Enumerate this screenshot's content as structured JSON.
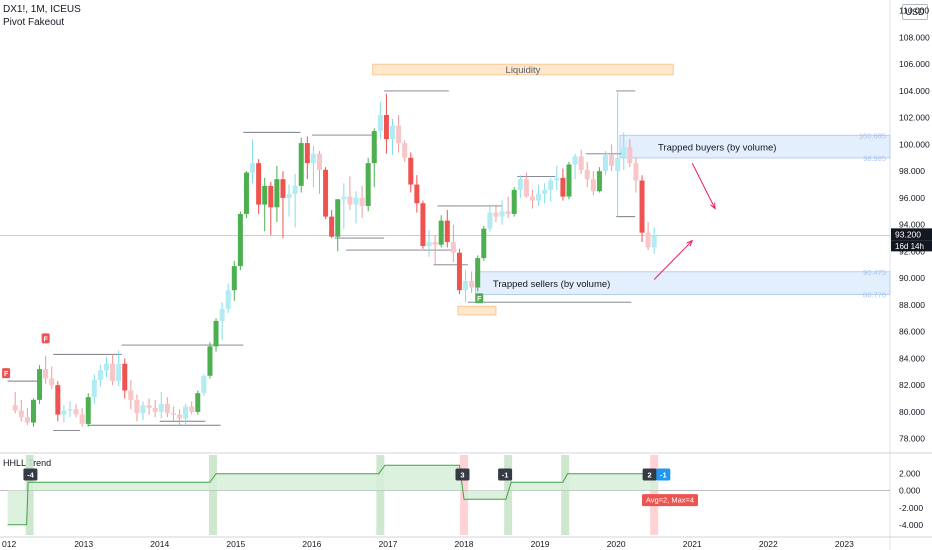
{
  "header": {
    "title": "DX1!, 1M, ICEUS",
    "subtitle": "Pivot Fakeout",
    "currency": "USD"
  },
  "colors": {
    "bull": "#26a69a",
    "bull_strong": "#4caf50",
    "bear": "#ef5350",
    "bull_light": "#b2ebf2",
    "bear_light": "#f8c5c8",
    "zone_fill": "#e3effd",
    "zone_stroke": "#a9c6e8",
    "liquidity_fill": "#ffe7cc",
    "liquidity_stroke": "#f5c08c",
    "trend_fill": "#d6efd8",
    "trend_line": "#43a047",
    "highlight_green": "#c8e6c9",
    "highlight_red": "#ffcdd2",
    "level_line": "#787b86",
    "arrow": "#e91e63"
  },
  "annotations": {
    "liquidity": "Liquidity",
    "trapped_buyers": "Trapped buyers (by volume)",
    "trapped_sellers": "Trapped sellers (by volume)",
    "marker_f": "F",
    "hhll_title": "HHLL Trend",
    "avg_max": "Avg=2, Max=4",
    "current_price": "93.200",
    "countdown": "16d 14h",
    "zone_labels": [
      "100.685",
      "98.985",
      "90.475",
      "88.770"
    ]
  },
  "chart_data": [
    {
      "type": "candlestick",
      "title": "DX1!, 1M, ICEUS",
      "x_label": "",
      "y_label": "",
      "x_ticks": [
        "2013",
        "2014",
        "2015",
        "2016",
        "2017",
        "2018",
        "2019",
        "2020",
        "2021",
        "2022",
        "2023"
      ],
      "y_ticks": [
        "78.000",
        "80.000",
        "82.000",
        "84.000",
        "86.000",
        "88.000",
        "90.000",
        "92.000",
        "94.000",
        "96.000",
        "98.000",
        "100.000",
        "102.000",
        "104.000",
        "106.000",
        "108.000",
        "110.000"
      ],
      "ylim": [
        77,
        110.5
      ],
      "grid": false,
      "candles": [
        {
          "t": 2012.1,
          "o": 80.5,
          "h": 81.5,
          "l": 79.9,
          "c": 80.1
        },
        {
          "t": 2012.18,
          "o": 80.1,
          "h": 80.9,
          "l": 79.3,
          "c": 79.6
        },
        {
          "t": 2012.26,
          "o": 79.6,
          "h": 80.3,
          "l": 79.0,
          "c": 79.2
        },
        {
          "t": 2012.34,
          "o": 79.2,
          "h": 81.0,
          "l": 78.9,
          "c": 80.9
        },
        {
          "t": 2012.42,
          "o": 80.9,
          "h": 83.5,
          "l": 80.6,
          "c": 83.2
        },
        {
          "t": 2012.5,
          "o": 83.2,
          "h": 84.2,
          "l": 82.1,
          "c": 82.5
        },
        {
          "t": 2012.58,
          "o": 82.5,
          "h": 83.4,
          "l": 81.7,
          "c": 82.0
        },
        {
          "t": 2012.66,
          "o": 82.0,
          "h": 82.3,
          "l": 79.3,
          "c": 79.8
        },
        {
          "t": 2012.74,
          "o": 79.8,
          "h": 80.5,
          "l": 79.2,
          "c": 80.1
        },
        {
          "t": 2012.82,
          "o": 80.1,
          "h": 80.8,
          "l": 79.6,
          "c": 80.2
        },
        {
          "t": 2012.9,
          "o": 80.2,
          "h": 80.6,
          "l": 79.6,
          "c": 79.8
        },
        {
          "t": 2012.98,
          "o": 79.8,
          "h": 80.3,
          "l": 78.9,
          "c": 79.1
        },
        {
          "t": 2013.06,
          "o": 79.1,
          "h": 81.4,
          "l": 78.9,
          "c": 81.1
        },
        {
          "t": 2013.14,
          "o": 81.1,
          "h": 82.8,
          "l": 80.6,
          "c": 82.4
        },
        {
          "t": 2013.22,
          "o": 82.4,
          "h": 83.5,
          "l": 81.9,
          "c": 83.1
        },
        {
          "t": 2013.3,
          "o": 83.1,
          "h": 84.1,
          "l": 82.6,
          "c": 83.6
        },
        {
          "t": 2013.38,
          "o": 83.6,
          "h": 84.3,
          "l": 82.0,
          "c": 82.3
        },
        {
          "t": 2013.46,
          "o": 82.3,
          "h": 84.6,
          "l": 81.9,
          "c": 83.6
        },
        {
          "t": 2013.54,
          "o": 83.6,
          "h": 84.0,
          "l": 81.0,
          "c": 81.6
        },
        {
          "t": 2013.62,
          "o": 81.6,
          "h": 82.4,
          "l": 80.2,
          "c": 80.9
        },
        {
          "t": 2013.7,
          "o": 80.9,
          "h": 81.3,
          "l": 79.3,
          "c": 79.9
        },
        {
          "t": 2013.78,
          "o": 79.9,
          "h": 80.8,
          "l": 79.4,
          "c": 80.5
        },
        {
          "t": 2013.86,
          "o": 80.5,
          "h": 81.0,
          "l": 79.8,
          "c": 80.3
        },
        {
          "t": 2013.94,
          "o": 80.3,
          "h": 80.9,
          "l": 79.6,
          "c": 80.0
        },
        {
          "t": 2014.02,
          "o": 80.0,
          "h": 81.5,
          "l": 79.5,
          "c": 80.6
        },
        {
          "t": 2014.1,
          "o": 80.6,
          "h": 81.1,
          "l": 79.6,
          "c": 79.9
        },
        {
          "t": 2014.18,
          "o": 79.9,
          "h": 80.4,
          "l": 79.3,
          "c": 79.8
        },
        {
          "t": 2014.26,
          "o": 79.8,
          "h": 80.2,
          "l": 79.0,
          "c": 79.5
        },
        {
          "t": 2014.34,
          "o": 79.5,
          "h": 80.6,
          "l": 79.0,
          "c": 80.4
        },
        {
          "t": 2014.42,
          "o": 80.4,
          "h": 80.8,
          "l": 79.8,
          "c": 80.0
        },
        {
          "t": 2014.5,
          "o": 80.0,
          "h": 81.6,
          "l": 79.8,
          "c": 81.4
        },
        {
          "t": 2014.58,
          "o": 81.4,
          "h": 82.8,
          "l": 81.2,
          "c": 82.7
        },
        {
          "t": 2014.66,
          "o": 82.7,
          "h": 85.2,
          "l": 82.5,
          "c": 84.9
        },
        {
          "t": 2014.74,
          "o": 84.9,
          "h": 87.0,
          "l": 84.5,
          "c": 86.8
        },
        {
          "t": 2014.82,
          "o": 86.8,
          "h": 88.2,
          "l": 85.4,
          "c": 87.7
        },
        {
          "t": 2014.9,
          "o": 87.7,
          "h": 89.6,
          "l": 87.4,
          "c": 89.1
        },
        {
          "t": 2014.98,
          "o": 89.1,
          "h": 91.3,
          "l": 88.3,
          "c": 90.9
        },
        {
          "t": 2015.06,
          "o": 90.9,
          "h": 95.0,
          "l": 90.6,
          "c": 94.8
        },
        {
          "t": 2015.14,
          "o": 94.8,
          "h": 98.0,
          "l": 94.5,
          "c": 97.9
        },
        {
          "t": 2015.22,
          "o": 97.9,
          "h": 100.4,
          "l": 97.1,
          "c": 98.6
        },
        {
          "t": 2015.3,
          "o": 98.6,
          "h": 98.9,
          "l": 94.8,
          "c": 95.5
        },
        {
          "t": 2015.38,
          "o": 95.5,
          "h": 97.5,
          "l": 93.5,
          "c": 96.9
        },
        {
          "t": 2015.46,
          "o": 96.9,
          "h": 97.2,
          "l": 93.2,
          "c": 95.3
        },
        {
          "t": 2015.54,
          "o": 95.3,
          "h": 98.4,
          "l": 94.2,
          "c": 97.4
        },
        {
          "t": 2015.62,
          "o": 97.4,
          "h": 98.0,
          "l": 93.0,
          "c": 96.0
        },
        {
          "t": 2015.7,
          "o": 96.0,
          "h": 97.0,
          "l": 94.6,
          "c": 96.3
        },
        {
          "t": 2015.78,
          "o": 96.3,
          "h": 97.8,
          "l": 93.8,
          "c": 96.9
        },
        {
          "t": 2015.86,
          "o": 96.9,
          "h": 100.5,
          "l": 96.4,
          "c": 100.1
        },
        {
          "t": 2015.94,
          "o": 100.1,
          "h": 100.6,
          "l": 97.4,
          "c": 98.6
        },
        {
          "t": 2016.02,
          "o": 98.6,
          "h": 99.9,
          "l": 96.8,
          "c": 99.3
        },
        {
          "t": 2016.1,
          "o": 99.3,
          "h": 99.5,
          "l": 96.3,
          "c": 98.1
        },
        {
          "t": 2016.18,
          "o": 98.1,
          "h": 98.3,
          "l": 94.4,
          "c": 94.6
        },
        {
          "t": 2016.26,
          "o": 94.6,
          "h": 95.1,
          "l": 93.0,
          "c": 93.1
        },
        {
          "t": 2016.34,
          "o": 93.1,
          "h": 95.9,
          "l": 92.0,
          "c": 95.9
        },
        {
          "t": 2016.42,
          "o": 95.9,
          "h": 97.1,
          "l": 93.7,
          "c": 96.1
        },
        {
          "t": 2016.5,
          "o": 96.1,
          "h": 97.6,
          "l": 95.1,
          "c": 95.5
        },
        {
          "t": 2016.58,
          "o": 95.5,
          "h": 96.5,
          "l": 94.1,
          "c": 96.0
        },
        {
          "t": 2016.66,
          "o": 96.0,
          "h": 96.9,
          "l": 94.5,
          "c": 95.4
        },
        {
          "t": 2016.74,
          "o": 95.4,
          "h": 99.0,
          "l": 95.0,
          "c": 98.6
        },
        {
          "t": 2016.82,
          "o": 98.6,
          "h": 101.2,
          "l": 96.8,
          "c": 101.0
        },
        {
          "t": 2016.9,
          "o": 101.0,
          "h": 103.2,
          "l": 100.4,
          "c": 102.2
        },
        {
          "t": 2016.98,
          "o": 102.2,
          "h": 103.8,
          "l": 99.3,
          "c": 100.4
        },
        {
          "t": 2017.06,
          "o": 100.4,
          "h": 101.9,
          "l": 99.2,
          "c": 101.4
        },
        {
          "t": 2017.14,
          "o": 101.4,
          "h": 102.2,
          "l": 99.4,
          "c": 100.1
        },
        {
          "t": 2017.22,
          "o": 100.1,
          "h": 100.3,
          "l": 98.7,
          "c": 99.0
        },
        {
          "t": 2017.3,
          "o": 99.0,
          "h": 99.4,
          "l": 96.4,
          "c": 97.0
        },
        {
          "t": 2017.38,
          "o": 97.0,
          "h": 97.7,
          "l": 94.9,
          "c": 95.6
        },
        {
          "t": 2017.46,
          "o": 95.6,
          "h": 95.8,
          "l": 92.2,
          "c": 92.4
        },
        {
          "t": 2017.54,
          "o": 92.4,
          "h": 93.6,
          "l": 91.6,
          "c": 92.7
        },
        {
          "t": 2017.62,
          "o": 92.7,
          "h": 93.2,
          "l": 91.0,
          "c": 92.5
        },
        {
          "t": 2017.7,
          "o": 92.5,
          "h": 94.7,
          "l": 92.3,
          "c": 94.3
        },
        {
          "t": 2017.78,
          "o": 94.3,
          "h": 95.1,
          "l": 92.3,
          "c": 92.7
        },
        {
          "t": 2017.86,
          "o": 92.7,
          "h": 94.0,
          "l": 91.2,
          "c": 91.9
        },
        {
          "t": 2017.94,
          "o": 91.9,
          "h": 92.2,
          "l": 88.8,
          "c": 89.1
        },
        {
          "t": 2018.02,
          "o": 89.1,
          "h": 90.6,
          "l": 88.2,
          "c": 89.8
        },
        {
          "t": 2018.1,
          "o": 89.8,
          "h": 90.5,
          "l": 88.9,
          "c": 89.3
        },
        {
          "t": 2018.18,
          "o": 89.3,
          "h": 91.7,
          "l": 89.0,
          "c": 91.5
        },
        {
          "t": 2018.26,
          "o": 91.5,
          "h": 93.9,
          "l": 91.3,
          "c": 93.7
        },
        {
          "t": 2018.34,
          "o": 93.7,
          "h": 95.5,
          "l": 93.5,
          "c": 94.9
        },
        {
          "t": 2018.42,
          "o": 94.9,
          "h": 95.5,
          "l": 94.2,
          "c": 94.6
        },
        {
          "t": 2018.5,
          "o": 94.6,
          "h": 95.8,
          "l": 94.0,
          "c": 95.0
        },
        {
          "t": 2018.58,
          "o": 95.0,
          "h": 96.1,
          "l": 94.5,
          "c": 94.8
        },
        {
          "t": 2018.66,
          "o": 94.8,
          "h": 96.8,
          "l": 94.6,
          "c": 96.6
        },
        {
          "t": 2018.74,
          "o": 96.6,
          "h": 97.7,
          "l": 96.0,
          "c": 97.4
        },
        {
          "t": 2018.82,
          "o": 97.4,
          "h": 97.9,
          "l": 96.0,
          "c": 96.1
        },
        {
          "t": 2018.9,
          "o": 96.1,
          "h": 96.6,
          "l": 95.2,
          "c": 95.8
        },
        {
          "t": 2018.98,
          "o": 95.8,
          "h": 97.0,
          "l": 95.4,
          "c": 96.3
        },
        {
          "t": 2019.06,
          "o": 96.3,
          "h": 97.1,
          "l": 95.6,
          "c": 96.6
        },
        {
          "t": 2019.14,
          "o": 96.6,
          "h": 97.5,
          "l": 95.7,
          "c": 97.3
        },
        {
          "t": 2019.22,
          "o": 97.3,
          "h": 98.4,
          "l": 96.6,
          "c": 97.5
        },
        {
          "t": 2019.3,
          "o": 97.5,
          "h": 98.2,
          "l": 95.8,
          "c": 96.1
        },
        {
          "t": 2019.38,
          "o": 96.1,
          "h": 98.7,
          "l": 95.9,
          "c": 98.5
        },
        {
          "t": 2019.46,
          "o": 98.5,
          "h": 99.3,
          "l": 97.4,
          "c": 99.1
        },
        {
          "t": 2019.54,
          "o": 99.1,
          "h": 99.6,
          "l": 97.8,
          "c": 98.1
        },
        {
          "t": 2019.62,
          "o": 98.1,
          "h": 98.7,
          "l": 96.8,
          "c": 97.4
        },
        {
          "t": 2019.7,
          "o": 97.4,
          "h": 98.0,
          "l": 96.2,
          "c": 96.5
        },
        {
          "t": 2019.78,
          "o": 96.5,
          "h": 98.3,
          "l": 96.4,
          "c": 98.0
        },
        {
          "t": 2019.86,
          "o": 98.0,
          "h": 99.5,
          "l": 97.7,
          "c": 99.2
        },
        {
          "t": 2019.94,
          "o": 99.2,
          "h": 100.0,
          "l": 98.0,
          "c": 98.4
        },
        {
          "t": 2020.02,
          "o": 98.0,
          "h": 103.9,
          "l": 94.6,
          "c": 99.0
        },
        {
          "t": 2020.1,
          "o": 99.0,
          "h": 100.9,
          "l": 98.1,
          "c": 99.8
        },
        {
          "t": 2020.18,
          "o": 99.8,
          "h": 100.4,
          "l": 98.3,
          "c": 98.6
        },
        {
          "t": 2020.26,
          "o": 98.6,
          "h": 99.0,
          "l": 96.4,
          "c": 97.3
        },
        {
          "t": 2020.34,
          "o": 97.3,
          "h": 97.7,
          "l": 92.7,
          "c": 93.4
        },
        {
          "t": 2020.42,
          "o": 93.4,
          "h": 94.2,
          "l": 92.1,
          "c": 92.3
        },
        {
          "t": 2020.5,
          "o": 92.3,
          "h": 93.8,
          "l": 91.8,
          "c": 93.2
        }
      ],
      "levels": [
        {
          "y": 104.0,
          "x1": 2016.95,
          "x2": 2017.8
        },
        {
          "y": 100.9,
          "x1": 2015.1,
          "x2": 2015.85
        },
        {
          "y": 100.7,
          "x1": 2016.0,
          "x2": 2016.8
        },
        {
          "y": 95.4,
          "x1": 2017.65,
          "x2": 2018.5
        },
        {
          "y": 97.6,
          "x1": 2018.7,
          "x2": 2019.2
        },
        {
          "y": 99.3,
          "x1": 2019.6,
          "x2": 2020.1
        },
        {
          "y": 104.0,
          "x1": 2020.0,
          "x2": 2020.25
        },
        {
          "y": 94.6,
          "x1": 2020.0,
          "x2": 2020.25
        },
        {
          "y": 93.0,
          "x1": 2016.3,
          "x2": 2016.95
        },
        {
          "y": 92.1,
          "x1": 2016.45,
          "x2": 2017.9
        },
        {
          "y": 91.0,
          "x1": 2017.6,
          "x2": 2018.05
        },
        {
          "y": 88.2,
          "x1": 2018.05,
          "x2": 2020.2
        },
        {
          "y": 85.0,
          "x1": 2013.5,
          "x2": 2015.1
        },
        {
          "y": 84.3,
          "x1": 2012.6,
          "x2": 2013.5
        },
        {
          "y": 82.3,
          "x1": 2012.0,
          "x2": 2012.4
        },
        {
          "y": 79.0,
          "x1": 2013.05,
          "x2": 2014.8
        },
        {
          "y": 79.3,
          "x1": 2014.0,
          "x2": 2014.6
        },
        {
          "y": 78.6,
          "x1": 2012.6,
          "x2": 2012.95
        }
      ],
      "current_price": 93.2
    },
    {
      "type": "area",
      "title": "HHLL Trend",
      "y_ticks": [
        "2.000",
        "0.000",
        "-2.000",
        "-4.000"
      ],
      "ylim": [
        -5.2,
        4.2
      ],
      "zero": 0,
      "steps": [
        {
          "x": 2012.0,
          "y": -4
        },
        {
          "x": 2012.25,
          "y": -4
        },
        {
          "x": 2012.27,
          "y": 1
        },
        {
          "x": 2014.66,
          "y": 1
        },
        {
          "x": 2014.74,
          "y": 2
        },
        {
          "x": 2016.88,
          "y": 2
        },
        {
          "x": 2016.96,
          "y": 3
        },
        {
          "x": 2017.94,
          "y": 3
        },
        {
          "x": 2018.0,
          "y": -1
        },
        {
          "x": 2018.55,
          "y": -1
        },
        {
          "x": 2018.62,
          "y": 1
        },
        {
          "x": 2019.3,
          "y": 1
        },
        {
          "x": 2019.36,
          "y": 2
        },
        {
          "x": 2020.55,
          "y": 2
        }
      ],
      "highlights": [
        {
          "x": 2012.29,
          "color": "green"
        },
        {
          "x": 2014.7,
          "color": "green"
        },
        {
          "x": 2016.9,
          "color": "green"
        },
        {
          "x": 2018.0,
          "color": "red"
        },
        {
          "x": 2018.58,
          "color": "green"
        },
        {
          "x": 2019.33,
          "color": "green"
        },
        {
          "x": 2020.5,
          "color": "red"
        }
      ],
      "labels": [
        {
          "x": 2012.3,
          "y": 1.2,
          "text": "-4",
          "tone": "dark"
        },
        {
          "x": 2017.98,
          "y": 1.2,
          "text": "3",
          "tone": "dark"
        },
        {
          "x": 2018.54,
          "y": 1.2,
          "text": "-1",
          "tone": "dark"
        },
        {
          "x": 2020.44,
          "y": 1.2,
          "text": "2",
          "tone": "dark"
        },
        {
          "x": 2020.62,
          "y": 1.2,
          "text": "-1",
          "tone": "blue"
        }
      ]
    }
  ]
}
